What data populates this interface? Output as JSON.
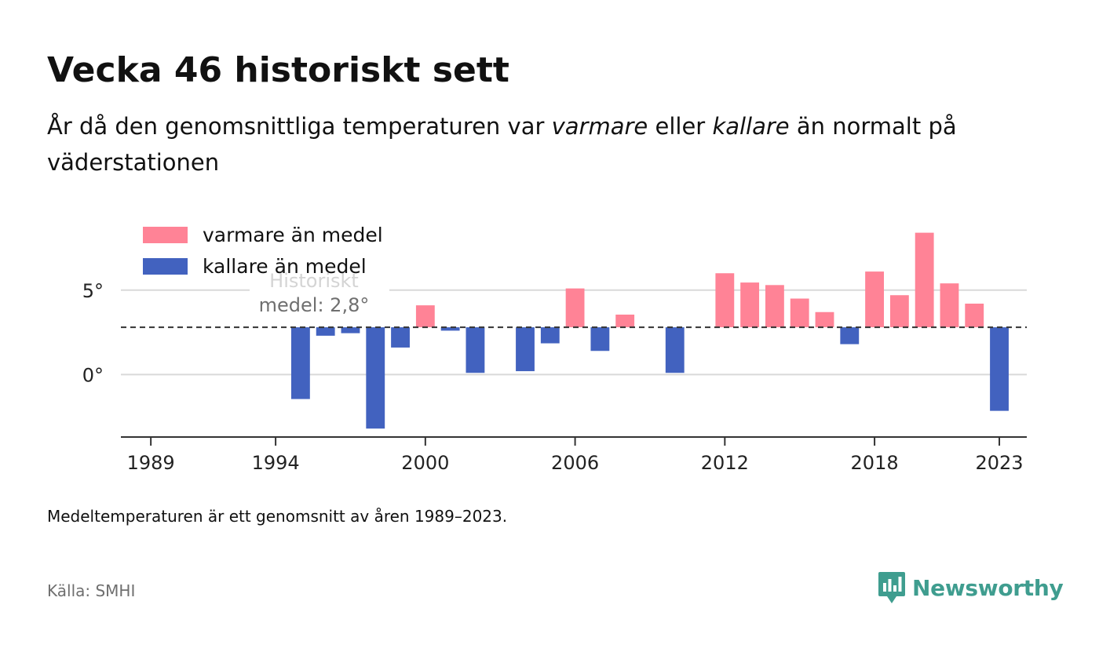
{
  "title": "Vecka 46 historiskt sett",
  "subtitle": {
    "part1": "År då den genomsnittliga temperaturen var ",
    "warm_word": "varmare",
    "part2": " eller ",
    "cold_word": "kallare",
    "part3": " än normalt på väderstationen"
  },
  "note": "Medeltemperaturen är ett genomsnitt av åren 1989–2023.",
  "source": "Källa: SMHI",
  "brand": {
    "name": "Newsworthy",
    "color": "#3f9d8f",
    "icon": "newsworthy-logo-icon"
  },
  "chart_data": {
    "type": "bar",
    "mean": 2.8,
    "mean_label_line1": "Historiskt",
    "mean_label_line2": "medel: 2,8°",
    "ylim": [
      -3.7,
      8.8
    ],
    "xlim": [
      1987.8,
      2024.1
    ],
    "yticks": [
      {
        "value": 0,
        "label": "0°"
      },
      {
        "value": 5,
        "label": "5°"
      }
    ],
    "xticks": [
      {
        "value": 1989,
        "label": "1989"
      },
      {
        "value": 1994,
        "label": "1994"
      },
      {
        "value": 2000,
        "label": "2000"
      },
      {
        "value": 2006,
        "label": "2006"
      },
      {
        "value": 2012,
        "label": "2012"
      },
      {
        "value": 2018,
        "label": "2018"
      },
      {
        "value": 2023,
        "label": "2023"
      }
    ],
    "legend": {
      "position": "top-left",
      "warm_label": "varmare än medel",
      "cold_label": "kallare än medel"
    },
    "colors": {
      "warm": "#ff8396",
      "cold": "#4262bf",
      "grid": "#d9d9d9",
      "axis": "#333333",
      "mean_line": "#333333"
    },
    "years": [
      1995,
      1996,
      1997,
      1998,
      1999,
      2000,
      2001,
      2002,
      2004,
      2005,
      2006,
      2007,
      2008,
      2010,
      2012,
      2013,
      2014,
      2015,
      2016,
      2017,
      2018,
      2019,
      2020,
      2021,
      2022,
      2023
    ],
    "values": [
      -1.45,
      2.3,
      2.45,
      -3.2,
      1.6,
      4.1,
      2.6,
      0.1,
      0.2,
      1.85,
      5.1,
      1.4,
      3.55,
      0.1,
      6.0,
      5.45,
      5.3,
      4.5,
      3.7,
      1.8,
      6.1,
      4.7,
      8.4,
      5.4,
      4.2,
      -2.15
    ]
  }
}
